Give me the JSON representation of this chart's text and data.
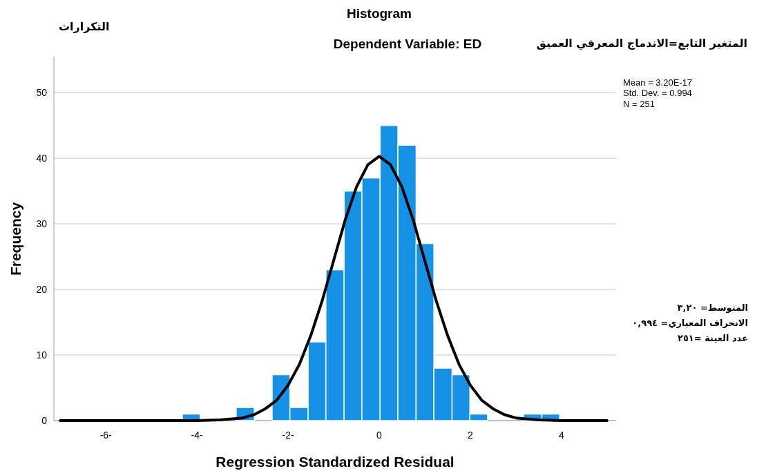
{
  "chart_data": {
    "type": "histogram",
    "title": "Histogram",
    "subtitle": "Dependent Variable: ED",
    "xlabel": "Regression Standardized Residual",
    "ylabel": "Frequency",
    "bins": [
      -4.32,
      -3.93,
      -3.14,
      -2.74,
      -2.35,
      -1.96,
      -1.56,
      -1.17,
      -0.77,
      -0.38,
      0.02,
      0.41,
      0.81,
      1.2,
      1.6,
      1.99,
      2.38,
      3.17,
      3.57,
      3.96
    ],
    "series": [
      {
        "color": "#1592e6",
        "values": [
          1,
          0,
          2,
          0,
          7,
          2,
          12,
          23,
          35,
          37,
          45,
          42,
          27,
          8,
          7,
          1,
          0,
          1,
          1
        ]
      },
      {
        "type": "line",
        "color": "#000000",
        "x": [
          -7,
          -4,
          -3.5,
          -3,
          -2.75,
          -2.5,
          -2.25,
          -2,
          -1.75,
          -1.5,
          -1.25,
          -1,
          -0.75,
          -0.5,
          -0.25,
          0,
          0.25,
          0.5,
          0.75,
          1,
          1.25,
          1.5,
          1.75,
          2,
          2.25,
          2.5,
          2.75,
          3,
          3.5,
          4,
          5
        ],
        "values": [
          0,
          0,
          0.1,
          0.4,
          0.9,
          1.8,
          3.1,
          5.4,
          8.6,
          13,
          18.3,
          24.4,
          30.5,
          35.6,
          39,
          40.3,
          39,
          35.6,
          30.5,
          24.4,
          18.3,
          13,
          8.6,
          5.4,
          3.1,
          1.8,
          0.9,
          0.4,
          0.1,
          0,
          0
        ]
      }
    ],
    "xlim": [
      -7.14,
      5.2
    ],
    "ylim": [
      0,
      55.5
    ],
    "xticks": [
      {
        "value": -6,
        "label": "-6-"
      },
      {
        "value": -4,
        "label": "-4-"
      },
      {
        "value": -2,
        "label": "-2-"
      },
      0,
      2,
      4
    ],
    "yticks": [
      0,
      10,
      20,
      30,
      40,
      50
    ],
    "grid": "y",
    "annotations": [
      "Mean = 3.20E-17",
      "Std. Dev. = 0.994",
      "N = 251",
      "التكرارات",
      "المتغير التابع=الاندماج المعرفي العميق",
      "المتوسط= ٣,٢٠",
      "الانحراف المعياري= ٠,٩٩٤",
      "عدد العينة =٢٥١"
    ]
  }
}
